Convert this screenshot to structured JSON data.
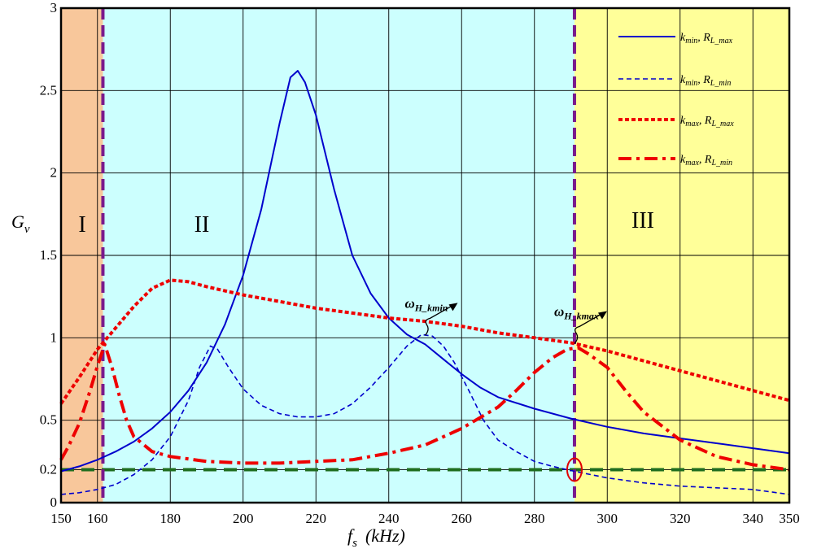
{
  "chart_data": {
    "type": "line",
    "xlabel": {
      "main": "f",
      "sub": "s",
      "unit": "(kHz)"
    },
    "ylabel": {
      "main": "G",
      "sub": "v"
    },
    "xlim": [
      150,
      350
    ],
    "ylim": [
      0,
      3
    ],
    "xticks": [
      150,
      160,
      180,
      200,
      220,
      240,
      260,
      280,
      300,
      320,
      340,
      350
    ],
    "xtick_labels": [
      "150",
      "160",
      "180",
      "200",
      "220",
      "240",
      "260",
      "280",
      "300",
      "320",
      "340",
      "350"
    ],
    "yticks": [
      0,
      0.2,
      0.5,
      1,
      1.5,
      2,
      2.5,
      3
    ],
    "ytick_labels": [
      "0",
      "0.2",
      "0.5",
      "1",
      "1.5",
      "2",
      "2.5",
      "3"
    ],
    "grid": true,
    "regions": [
      {
        "label": "I",
        "x_start": 150,
        "x_end": 161.5,
        "color": "#f8c79b"
      },
      {
        "label": "II",
        "x_start": 161.5,
        "x_end": 291,
        "color": "#ccfffe"
      },
      {
        "label": "III",
        "x_start": 291,
        "x_end": 350,
        "color": "#ffff99"
      }
    ],
    "region_boundaries": [
      161.5,
      291
    ],
    "boundary_color": "#7a1a8c",
    "threshold": {
      "y": 0.2,
      "color": "#1f6e1f"
    },
    "marked_point": {
      "x": 291,
      "y": 0.2,
      "color": "#e00000"
    },
    "series": [
      {
        "name": {
          "p1": "k",
          "s1": "min",
          "p2": ", R",
          "s2": "L_max"
        },
        "style": "solid",
        "color": "#0000cc",
        "points": [
          [
            150,
            0.19
          ],
          [
            155,
            0.22
          ],
          [
            160,
            0.26
          ],
          [
            165,
            0.31
          ],
          [
            170,
            0.37
          ],
          [
            175,
            0.45
          ],
          [
            180,
            0.55
          ],
          [
            185,
            0.68
          ],
          [
            190,
            0.85
          ],
          [
            195,
            1.08
          ],
          [
            200,
            1.38
          ],
          [
            205,
            1.78
          ],
          [
            210,
            2.3
          ],
          [
            213,
            2.58
          ],
          [
            215,
            2.62
          ],
          [
            217,
            2.55
          ],
          [
            220,
            2.35
          ],
          [
            225,
            1.9
          ],
          [
            230,
            1.5
          ],
          [
            235,
            1.27
          ],
          [
            240,
            1.12
          ],
          [
            245,
            1.02
          ],
          [
            250,
            0.96
          ],
          [
            255,
            0.87
          ],
          [
            260,
            0.78
          ],
          [
            265,
            0.7
          ],
          [
            270,
            0.64
          ],
          [
            280,
            0.57
          ],
          [
            290,
            0.51
          ],
          [
            300,
            0.46
          ],
          [
            310,
            0.42
          ],
          [
            320,
            0.39
          ],
          [
            330,
            0.36
          ],
          [
            340,
            0.33
          ],
          [
            350,
            0.3
          ]
        ]
      },
      {
        "name": {
          "p1": "k",
          "s1": "min",
          "p2": ", R",
          "s2": "L_min"
        },
        "style": "dashed",
        "color": "#0000cc",
        "points": [
          [
            150,
            0.05
          ],
          [
            155,
            0.06
          ],
          [
            160,
            0.08
          ],
          [
            165,
            0.11
          ],
          [
            170,
            0.17
          ],
          [
            175,
            0.26
          ],
          [
            180,
            0.4
          ],
          [
            185,
            0.62
          ],
          [
            188,
            0.82
          ],
          [
            191,
            0.95
          ],
          [
            193,
            0.93
          ],
          [
            196,
            0.82
          ],
          [
            200,
            0.69
          ],
          [
            205,
            0.59
          ],
          [
            210,
            0.54
          ],
          [
            215,
            0.52
          ],
          [
            220,
            0.52
          ],
          [
            225,
            0.54
          ],
          [
            230,
            0.6
          ],
          [
            235,
            0.7
          ],
          [
            240,
            0.82
          ],
          [
            245,
            0.95
          ],
          [
            249,
            1.02
          ],
          [
            252,
            1.01
          ],
          [
            255,
            0.95
          ],
          [
            258,
            0.85
          ],
          [
            262,
            0.68
          ],
          [
            266,
            0.5
          ],
          [
            270,
            0.38
          ],
          [
            275,
            0.31
          ],
          [
            280,
            0.25
          ],
          [
            285,
            0.22
          ],
          [
            291,
            0.19
          ],
          [
            300,
            0.15
          ],
          [
            310,
            0.12
          ],
          [
            320,
            0.1
          ],
          [
            330,
            0.09
          ],
          [
            340,
            0.08
          ],
          [
            350,
            0.05
          ]
        ]
      },
      {
        "name": {
          "p1": "k",
          "s1": "max",
          "p2": ", R",
          "s2": "L_max"
        },
        "style": "dotted",
        "color": "#ee0000",
        "points": [
          [
            150,
            0.6
          ],
          [
            155,
            0.76
          ],
          [
            160,
            0.93
          ],
          [
            165,
            1.06
          ],
          [
            170,
            1.19
          ],
          [
            175,
            1.3
          ],
          [
            180,
            1.35
          ],
          [
            185,
            1.34
          ],
          [
            190,
            1.31
          ],
          [
            200,
            1.26
          ],
          [
            210,
            1.22
          ],
          [
            220,
            1.18
          ],
          [
            230,
            1.15
          ],
          [
            240,
            1.12
          ],
          [
            250,
            1.1
          ],
          [
            260,
            1.07
          ],
          [
            270,
            1.03
          ],
          [
            280,
            1.0
          ],
          [
            290,
            0.97
          ],
          [
            300,
            0.92
          ],
          [
            310,
            0.86
          ],
          [
            320,
            0.8
          ],
          [
            330,
            0.74
          ],
          [
            340,
            0.68
          ],
          [
            350,
            0.62
          ]
        ]
      },
      {
        "name": {
          "p1": "k",
          "s1": "max",
          "p2": ", R",
          "s2": "L_min"
        },
        "style": "dashdot",
        "color": "#ee0000",
        "points": [
          [
            150,
            0.26
          ],
          [
            152,
            0.34
          ],
          [
            155,
            0.48
          ],
          [
            158,
            0.68
          ],
          [
            160,
            0.83
          ],
          [
            162,
            0.96
          ],
          [
            164,
            0.82
          ],
          [
            166,
            0.65
          ],
          [
            168,
            0.5
          ],
          [
            170,
            0.4
          ],
          [
            175,
            0.31
          ],
          [
            180,
            0.28
          ],
          [
            190,
            0.25
          ],
          [
            200,
            0.24
          ],
          [
            210,
            0.24
          ],
          [
            220,
            0.25
          ],
          [
            230,
            0.26
          ],
          [
            240,
            0.3
          ],
          [
            250,
            0.35
          ],
          [
            260,
            0.45
          ],
          [
            270,
            0.58
          ],
          [
            275,
            0.68
          ],
          [
            280,
            0.79
          ],
          [
            285,
            0.88
          ],
          [
            289,
            0.93
          ],
          [
            292,
            0.94
          ],
          [
            295,
            0.9
          ],
          [
            300,
            0.82
          ],
          [
            305,
            0.68
          ],
          [
            310,
            0.55
          ],
          [
            320,
            0.38
          ],
          [
            330,
            0.28
          ],
          [
            340,
            0.23
          ],
          [
            350,
            0.2
          ]
        ]
      }
    ],
    "annotations": [
      {
        "main": "ω",
        "sub": "H_kmin",
        "x": 250,
        "y": 1.0
      },
      {
        "main": "ω",
        "sub": "H_kmax",
        "x": 291,
        "y": 0.95
      }
    ]
  }
}
